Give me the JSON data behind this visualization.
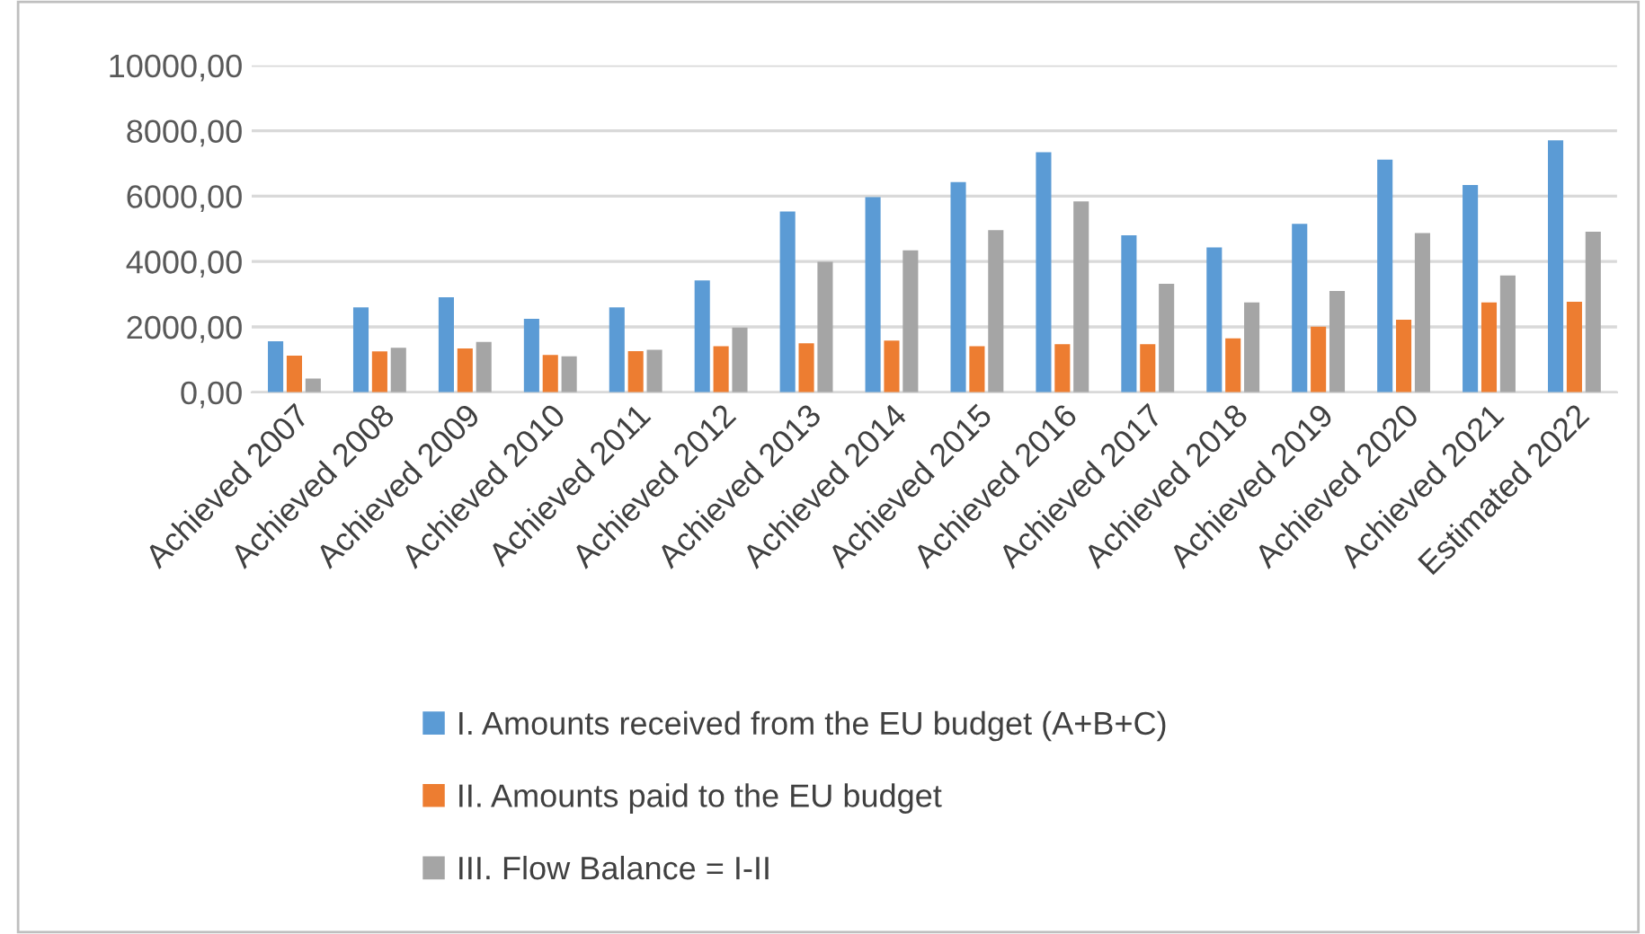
{
  "chart_data": {
    "type": "bar",
    "categories": [
      "Achieved 2007",
      "Achieved 2008",
      "Achieved 2009",
      "Achieved 2010",
      "Achieved 2011",
      "Achieved 2012",
      "Achieved 2013",
      "Achieved 2014",
      "Achieved 2015",
      "Achieved 2016",
      "Achieved 2017",
      "Achieved 2018",
      "Achieved 2019",
      "Achieved 2020",
      "Achieved 2021",
      "Estimated 2022"
    ],
    "series": [
      {
        "name": "I. Amounts received from the EU budget (A+B+C)",
        "color": "#5b9bd5",
        "values": [
          1560,
          2600,
          2910,
          2250,
          2600,
          3420,
          5530,
          5970,
          6430,
          7340,
          4800,
          4430,
          5150,
          7120,
          6340,
          7710
        ]
      },
      {
        "name": "II. Amounts paid to the EU budget",
        "color": "#ed7d31",
        "values": [
          1120,
          1250,
          1340,
          1140,
          1260,
          1410,
          1500,
          1580,
          1410,
          1470,
          1470,
          1650,
          2010,
          2220,
          2750,
          2770
        ]
      },
      {
        "name": "III. Flow Balance = I-II",
        "color": "#a5a5a5",
        "values": [
          420,
          1360,
          1540,
          1100,
          1300,
          1980,
          3990,
          4340,
          4960,
          5840,
          3320,
          2750,
          3100,
          4870,
          3570,
          4910
        ]
      }
    ],
    "ylim": [
      0,
      10000
    ],
    "yticks": [
      {
        "value": 0,
        "label": "0,00"
      },
      {
        "value": 2000,
        "label": "2000,00"
      },
      {
        "value": 4000,
        "label": "4000,00"
      },
      {
        "value": 6000,
        "label": "6000,00"
      },
      {
        "value": 8000,
        "label": "8000,00"
      },
      {
        "value": 10000,
        "label": "10000,00"
      }
    ],
    "grid": "y",
    "legend": "bottom"
  }
}
